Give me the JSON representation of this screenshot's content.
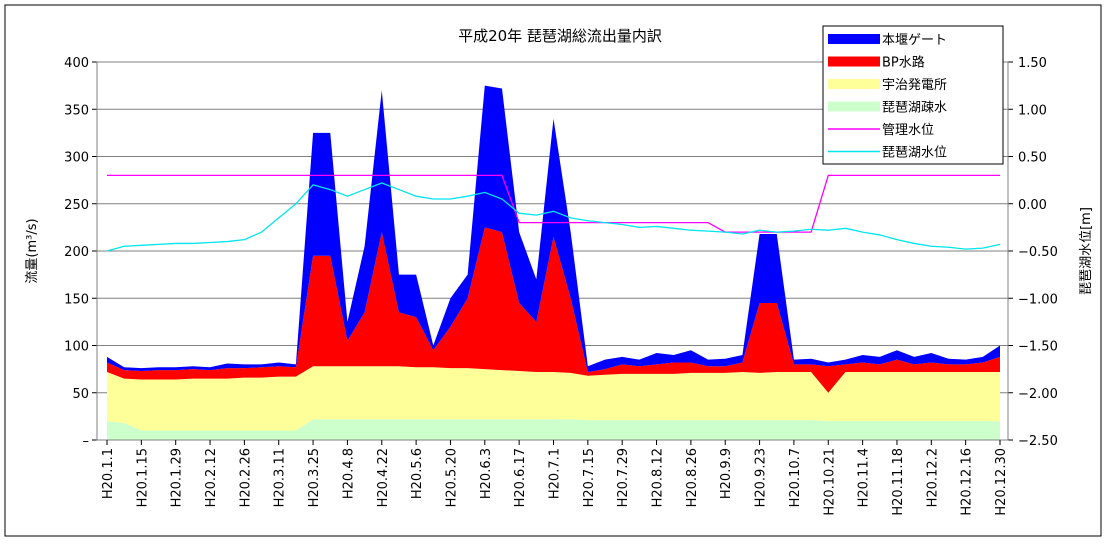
{
  "chart_data": {
    "type": "stacked-area-line",
    "title": "平成20年 琵琶湖総流出量内訳",
    "y_label": "流量(m³/s)",
    "y2_label": "琵琶湖水位[m]",
    "categories": [
      "H20.1.1",
      null,
      "H20.1.15",
      null,
      "H20.1.29",
      null,
      "H20.2.12",
      null,
      "H20.2.26",
      null,
      "H20.3.11",
      null,
      "H20.3.25",
      null,
      "H20.4.8",
      null,
      "H20.4.22",
      null,
      "H20.5.6",
      null,
      "H20.5.20",
      null,
      "H20.6.3",
      null,
      "H20.6.17",
      null,
      "H20.7.1",
      null,
      "H20.7.15",
      null,
      "H20.7.29",
      null,
      "H20.8.12",
      null,
      "H20.8.26",
      null,
      "H20.9.9",
      null,
      "H20.9.23",
      null,
      "H20.10.7",
      null,
      "H20.10.21",
      null,
      "H20.11.4",
      null,
      "H20.11.18",
      null,
      "H20.12.2",
      null,
      "H20.12.16",
      null,
      "H20.12.30"
    ],
    "series": [
      {
        "name": "琵琶湖疎水",
        "color": "#ccffcc",
        "values": [
          20,
          18,
          10,
          10,
          10,
          10,
          10,
          10,
          10,
          10,
          10,
          10,
          22,
          22,
          22,
          22,
          22,
          22,
          22,
          22,
          22,
          22,
          22,
          22,
          22,
          22,
          22,
          22,
          21,
          21,
          21,
          21,
          21,
          21,
          21,
          21,
          21,
          21,
          21,
          21,
          21,
          21,
          20,
          20,
          20,
          20,
          20,
          20,
          20,
          20,
          20,
          20,
          20
        ]
      },
      {
        "name": "宇治発電所",
        "color": "#ffff99",
        "values": [
          52,
          47,
          54,
          54,
          54,
          55,
          55,
          55,
          56,
          56,
          57,
          57,
          56,
          56,
          56,
          56,
          56,
          56,
          55,
          55,
          54,
          54,
          53,
          52,
          51,
          50,
          50,
          49,
          47,
          48,
          49,
          49,
          49,
          49,
          50,
          50,
          50,
          51,
          50,
          51,
          51,
          51,
          30,
          52,
          52,
          52,
          52,
          52,
          52,
          52,
          52,
          52,
          52
        ]
      },
      {
        "name": "BP水路",
        "color": "#ff0000",
        "values": [
          10,
          9,
          9,
          10,
          10,
          10,
          9,
          11,
          10,
          11,
          11,
          10,
          117,
          117,
          27,
          57,
          142,
          57,
          53,
          18,
          44,
          74,
          150,
          146,
          72,
          53,
          143,
          79,
          4,
          6,
          10,
          8,
          10,
          12,
          11,
          7,
          7,
          10,
          74,
          73,
          8,
          8,
          28,
          8,
          10,
          8,
          13,
          8,
          10,
          8,
          8,
          10,
          16
        ]
      },
      {
        "name": "本堰ゲート",
        "color": "#0000ff",
        "values": [
          6,
          3,
          3,
          3,
          3,
          3,
          3,
          5,
          4,
          3,
          4,
          3,
          130,
          130,
          20,
          70,
          150,
          40,
          45,
          5,
          30,
          25,
          150,
          152,
          75,
          45,
          125,
          70,
          6,
          10,
          8,
          7,
          12,
          8,
          13,
          7,
          8,
          8,
          73,
          73,
          5,
          6,
          4,
          5,
          8,
          8,
          10,
          8,
          10,
          6,
          5,
          6,
          12
        ]
      },
      {
        "name": "管理水位",
        "color": "#ff00ff",
        "axis": "y2",
        "values": [
          0.3,
          0.3,
          0.3,
          0.3,
          0.3,
          0.3,
          0.3,
          0.3,
          0.3,
          0.3,
          0.3,
          0.3,
          0.3,
          0.3,
          0.3,
          0.3,
          0.3,
          0.3,
          0.3,
          0.3,
          0.3,
          0.3,
          0.3,
          0.3,
          -0.2,
          -0.2,
          -0.2,
          -0.2,
          -0.2,
          -0.2,
          -0.2,
          -0.2,
          -0.2,
          -0.2,
          -0.2,
          -0.2,
          -0.3,
          -0.3,
          -0.3,
          -0.3,
          -0.3,
          -0.3,
          0.3,
          0.3,
          0.3,
          0.3,
          0.3,
          0.3,
          0.3,
          0.3,
          0.3,
          0.3,
          0.3
        ]
      },
      {
        "name": "琵琶湖水位",
        "color": "#00e5ee",
        "axis": "y2",
        "values": [
          -0.5,
          -0.45,
          -0.44,
          -0.43,
          -0.42,
          -0.42,
          -0.41,
          -0.4,
          -0.38,
          -0.3,
          -0.15,
          0,
          0.2,
          0.15,
          0.08,
          0.15,
          0.22,
          0.15,
          0.08,
          0.05,
          0.05,
          0.08,
          0.12,
          0.05,
          -0.1,
          -0.12,
          -0.08,
          -0.15,
          -0.18,
          -0.2,
          -0.22,
          -0.25,
          -0.24,
          -0.26,
          -0.28,
          -0.29,
          -0.3,
          -0.32,
          -0.28,
          -0.3,
          -0.29,
          -0.27,
          -0.28,
          -0.26,
          -0.3,
          -0.33,
          -0.38,
          -0.42,
          -0.45,
          -0.46,
          -0.48,
          -0.47,
          -0.43
        ]
      }
    ],
    "legend_order": [
      3,
      2,
      1,
      0,
      4,
      5
    ],
    "ylim": [
      0,
      400
    ],
    "yticks": [
      {
        "value": 0,
        "label": "–"
      },
      50,
      100,
      150,
      200,
      250,
      300,
      350,
      400
    ],
    "y2lim": [
      -2.5,
      1.5
    ],
    "y2ticks": [
      {
        "value": -2.5,
        "label": "−2.50"
      },
      {
        "value": -2,
        "label": "−2.00"
      },
      {
        "value": -1.5,
        "label": "−1.50"
      },
      {
        "value": -1,
        "label": "−1.00"
      },
      {
        "value": -0.5,
        "label": "−0.50"
      },
      {
        "value": 0,
        "label": "0.00"
      },
      {
        "value": 0.5,
        "label": "0.50"
      },
      {
        "value": 1,
        "label": "1.00"
      },
      {
        "value": 1.5,
        "label": "1.50"
      }
    ],
    "grid": true
  }
}
